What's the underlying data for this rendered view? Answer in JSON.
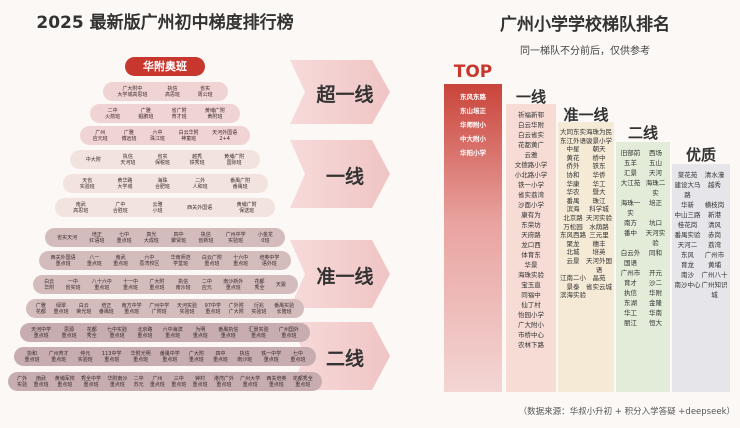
{
  "left": {
    "title": "2025 最新版广州初中梯度排行榜",
    "rows": [
      [
        "华附奥班"
      ],
      [
        "广大附中\n大学城高思班",
        "执信\n高思班",
        "省实\n周公班"
      ],
      [
        "二中\n火箭班",
        "广雅\n鲲鹏班",
        "省广附\n育才班",
        "黄埔广附\n黄附班"
      ],
      [
        "广州\n应元班",
        "广雅\n博远班",
        "六中\n珠江班",
        "白云华附\n神童班",
        "天河外国语\n2+4"
      ],
      [
        "中大附",
        "执信\n天河班",
        "省实\n保税班",
        "越秀\n铁秀班",
        "黄埔广附\n国际班"
      ],
      [
        "天省\n实验班",
        "黄华路\n大学城",
        "海珠\n合肥班",
        "二外\n人和班",
        "番禺广附\n番禺班"
      ],
      [
        "南武\n高思班",
        "广中\n合胜班",
        "云雅\n小班",
        "西关外国语",
        "黄埔广附\n保送班"
      ],
      [
        "省实天河",
        "培正\n红语班",
        "七中\n重点班",
        "真光\n大成班",
        "四中\n聚贤班",
        "执信\n创新班",
        "广州中学\n实验班",
        "小金龙\n0班"
      ],
      [
        "西关外国语\n重点班",
        "八一\n重点班",
        "南武\n重点班",
        "六中\n荔湾校区",
        "华南师范\n学堂班",
        "白云广附\n重点班",
        "十六中\n重点班",
        "培英中学\n语外班"
      ],
      [
        "白云\n华附",
        "一中\n省实班",
        "八十六中\n重点班",
        "十一中\n重点班",
        "广大附\n重点班",
        "执信\n南沙班",
        "二中\n应元",
        "南沙新外\n重点班",
        "花都\n秀全",
        "天骏"
      ],
      [
        "广雅\n花都",
        "绿翠\n重点班",
        "白云\n荣光班",
        "培正\n番禺班",
        "南方中学\n重点班",
        "广州中学\n广附班",
        "天河实验\n实验班",
        "97中学\n重点班",
        "广外附\n广大附",
        "衍兆\n实验班",
        "番禺实验\n长隆班"
      ],
      [
        "天河中学\n重点班",
        "思源\n重点班",
        "花都\n秀全",
        "七中实验\n重点班",
        "北京路\n重点班",
        "六中海滨\n重点班",
        "为明\n重点班",
        "番禺执信\n重点班",
        "汇景实验\n重点班",
        "广州国外\n重点班"
      ],
      [
        "协和\n重点班",
        "广州育才\n重点班",
        "仲元\n实验班",
        "113中学\n重点班",
        "华附光明\n重点班",
        "番禺中学\n重点班",
        "广大附\n重点班",
        "四中\n重点班",
        "执信\n南沙班",
        "铁一中学\n重点班",
        "七中\n重点班"
      ],
      [
        "广外\n实验",
        "南武\n重点班",
        "黄埔军校\n重点班",
        "秀全中学\n重点班",
        "华附南沙\n重点班",
        "二中\n苏元",
        "广州\n重点班",
        "三中\n重点班",
        "钟村\n重点班",
        "港湾广外\n重点班",
        "广州大学\n重点班",
        "西关培英\n重点班",
        "花都秀全\n重点班"
      ]
    ]
  },
  "tiers": [
    "超一线",
    "一线",
    "准一线",
    "二线"
  ],
  "right": {
    "title": "广州小学学校梯队排名",
    "subtitle": "同一梯队不分前后，仅供参考",
    "columns": [
      {
        "label": "TOP",
        "items": [
          "东风东路",
          "东山培正",
          "华师附小",
          "中大附小",
          "华阳小学"
        ]
      },
      {
        "label": "一线",
        "items": [
          "祈福新邨",
          "白云华附",
          "白云省实",
          "花都黄广",
          "云雅",
          "文德路小学",
          "小北路小学",
          "铁一小学",
          "省实荔湾",
          "沙面小学",
          "康有为",
          "东荣坊",
          "天府路",
          "龙口西",
          "体育东",
          "华景",
          "海珠实验",
          "宝玉直",
          "同福中",
          "仙丁村",
          "怡园小学",
          "广大附小",
          "市桥中心",
          "农林下路"
        ]
      },
      {
        "label": "准一线",
        "items": [
          "大同东实",
          "海珠为民",
          "东江外语",
          "骏景小学",
          "中星",
          "朝天",
          "黄花",
          "桥中",
          "侨外",
          "铁东",
          "协和",
          "华侨",
          "华康",
          "华工",
          "华农",
          "暨大",
          "番禺",
          "珠江",
          "滨海",
          "科学城",
          "北京路",
          "天河实验",
          "万松园",
          "水荫路",
          "东风西路",
          "三元里",
          "聚龙",
          "穗丰",
          "北城",
          "培英",
          "云景",
          "天河外国语",
          "江南二小",
          "晶苑",
          "景泰",
          "省实云城",
          "滨海实验"
        ]
      },
      {
        "label": "二线",
        "items": [
          "旧部前",
          "西场",
          "五羊",
          "五山",
          "汇景",
          "天河",
          "大江苑",
          "海珠二实",
          "海珠一实",
          "培正",
          "南方",
          "坑口",
          "番中",
          "天河实验",
          "白云外国语",
          "同和",
          "广州市",
          "开元",
          "育才",
          "沙二",
          "执信",
          "华附",
          "东湖",
          "金隆",
          "华工",
          "华南",
          "丽江",
          "恒大"
        ]
      },
      {
        "label": "优质",
        "items": [
          "棠花苑",
          "清水濠",
          "建设大马路",
          "越秀",
          "华新",
          "横枝岗",
          "中山三路",
          "新港",
          "桂花岗",
          "清风",
          "番禺实验",
          "赤岗",
          "天河二",
          "荔湾",
          "东风",
          "广州市",
          "育龙",
          "黄埔",
          "南沙",
          "广州八十",
          "南沙中心",
          "广州知识城"
        ]
      }
    ]
  },
  "footer": "（数据来源：华叔小升初 + 积分入学答疑 +deepseek）"
}
